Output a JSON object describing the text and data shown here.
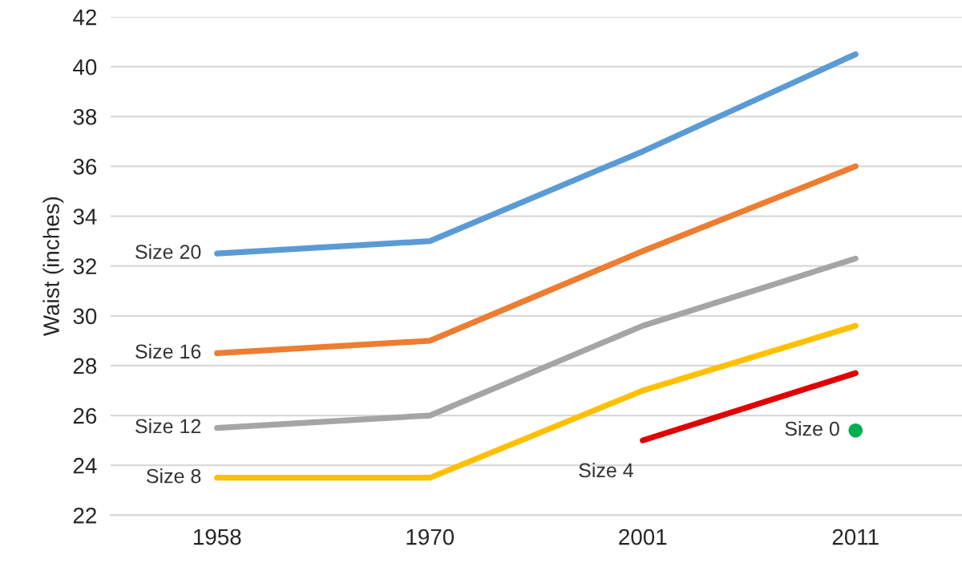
{
  "chart_data": {
    "type": "line",
    "ylabel": "Waist (inches)",
    "categories": [
      "1958",
      "1970",
      "2001",
      "2011"
    ],
    "series": [
      {
        "name": "Size 20",
        "color": "#5b9bd5",
        "values": [
          32.5,
          33,
          36.6,
          40.5
        ]
      },
      {
        "name": "Size 16",
        "color": "#ed7d31",
        "values": [
          28.5,
          29,
          32.6,
          36
        ]
      },
      {
        "name": "Size 12",
        "color": "#a5a5a5",
        "values": [
          25.5,
          26,
          29.6,
          32.3
        ]
      },
      {
        "name": "Size 8",
        "color": "#ffc000",
        "values": [
          23.5,
          23.5,
          27,
          29.6
        ]
      },
      {
        "name": "Size 4",
        "color": "#e00000",
        "values": [
          null,
          null,
          25,
          27.7
        ]
      },
      {
        "name": "Size 0",
        "type": "scatter",
        "color": "#00b050",
        "values": [
          null,
          null,
          null,
          25.4
        ]
      }
    ],
    "ylim": [
      22,
      42
    ],
    "yticks": [
      22,
      24,
      26,
      28,
      30,
      32,
      34,
      36,
      38,
      40,
      42
    ],
    "grid": "y",
    "legend": false
  }
}
